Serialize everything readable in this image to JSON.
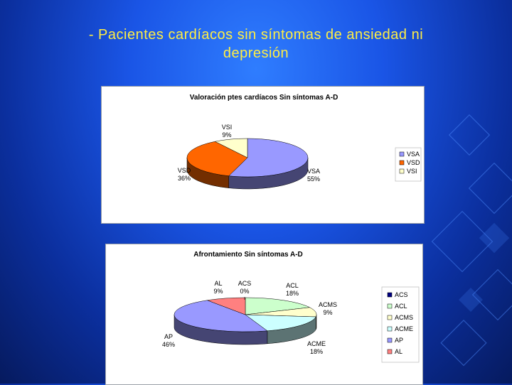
{
  "slide": {
    "title_line1": "- Pacientes cardíacos sin síntomas de ansiedad ni",
    "title_line2": "depresión"
  },
  "chart_data": [
    {
      "type": "pie",
      "title": "Valoración ptes cardíacos Sin síntomas A-D",
      "categories": [
        "VSA",
        "VSD",
        "VSI"
      ],
      "values": [
        55,
        36,
        9
      ],
      "labels": [
        "55%",
        "36%",
        "9%"
      ],
      "colors": [
        "#9999ff",
        "#ff6600",
        "#ffffcc"
      ],
      "legend": "right"
    },
    {
      "type": "pie",
      "title": "Afrontamiento Sin síntomas A-D",
      "categories": [
        "ACS",
        "ACL",
        "ACMS",
        "ACME",
        "AP",
        "AL"
      ],
      "values": [
        0,
        18,
        9,
        18,
        46,
        9
      ],
      "labels": [
        "0%",
        "18%",
        "9%",
        "18%",
        "46%",
        "9%"
      ],
      "colors": [
        "#000080",
        "#ccffcc",
        "#ffffcc",
        "#ccffff",
        "#9999ff",
        "#ff8080"
      ],
      "legend": "right"
    }
  ]
}
